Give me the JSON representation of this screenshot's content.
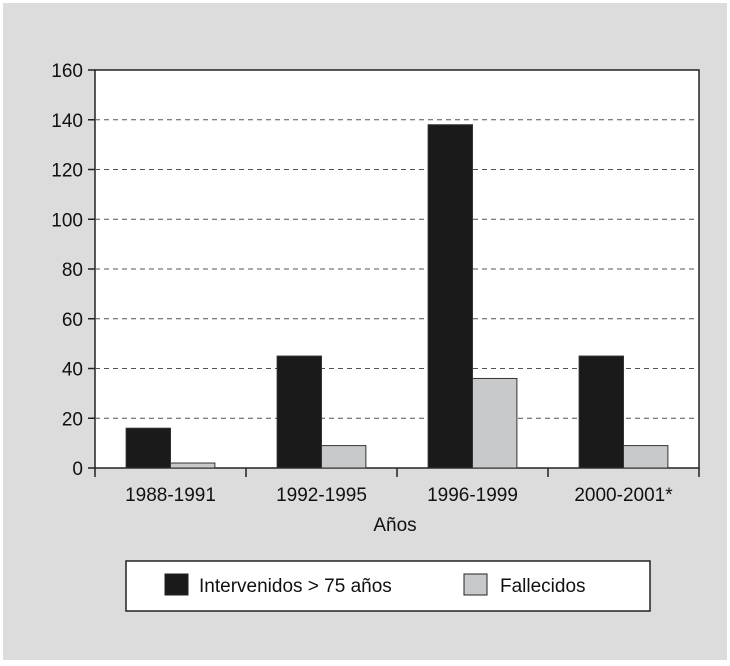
{
  "chart_data": {
    "type": "bar",
    "categories": [
      "1988-1991",
      "1992-1995",
      "1996-1999",
      "2000-2001*"
    ],
    "series": [
      {
        "name": "Intervenidos > 75 años",
        "values": [
          16,
          45,
          138,
          45
        ],
        "color": "#1a1a1a"
      },
      {
        "name": "Fallecidos",
        "values": [
          2,
          9,
          36,
          9
        ],
        "color": "#c8c9ca"
      }
    ],
    "xlabel": "Años",
    "ylabel": "",
    "ylim": [
      0,
      160
    ],
    "yticks": [
      "0",
      "20",
      "40",
      "60",
      "80",
      "100",
      "120",
      "140",
      "160"
    ],
    "grid": "dashed horizontal",
    "legend": "bottom-center",
    "background": "#dcdcdd",
    "plot_background": "#ffffff"
  }
}
